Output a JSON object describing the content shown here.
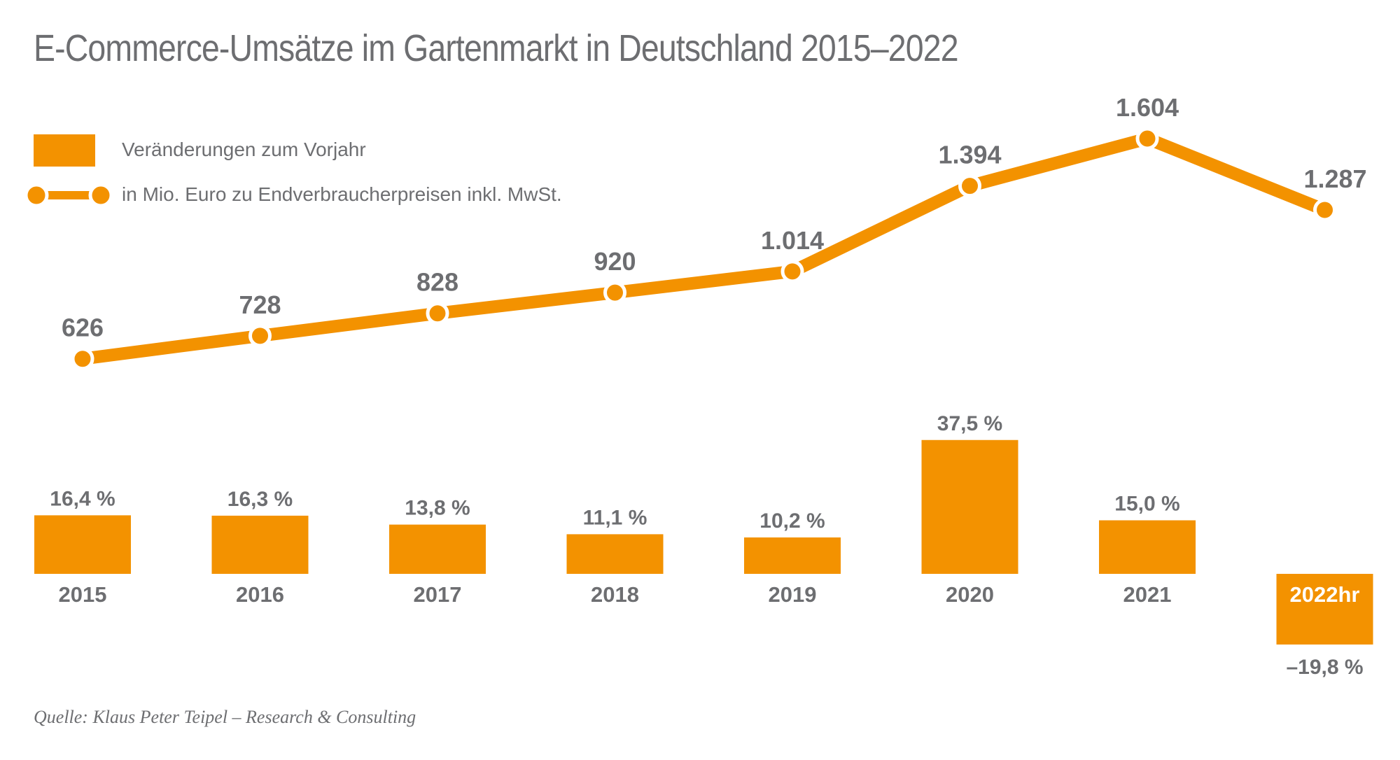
{
  "title": "E-Commerce-Umsätze im Gartenmarkt in Deutschland 2015–2022",
  "legend": {
    "bar_label": "Veränderungen zum Vorjahr",
    "line_label": "in Mio. Euro zu Endverbraucherpreisen inkl. MwSt."
  },
  "source": "Quelle: Klaus Peter Teipel – Research & Consulting",
  "colors": {
    "accent": "#f39200",
    "text": "#6d6e71",
    "label_light": "#ffffff"
  },
  "chart_data": {
    "type": "bar+line",
    "categories": [
      "2015",
      "2016",
      "2017",
      "2018",
      "2019",
      "2020",
      "2021",
      "2022hr"
    ],
    "bar_series": {
      "name": "Veränderungen zum Vorjahr",
      "values": [
        16.4,
        16.3,
        13.8,
        11.1,
        10.2,
        37.5,
        15.0,
        -19.8
      ],
      "labels": [
        "16,4 %",
        "16,3 %",
        "13,8 %",
        "11,1 %",
        "10,2 %",
        "37,5 %",
        "15,0 %",
        "–19,8 %"
      ]
    },
    "line_series": {
      "name": "in Mio. Euro zu Endverbraucherpreisen inkl. MwSt.",
      "values": [
        626,
        728,
        828,
        920,
        1014,
        1394,
        1604,
        1287
      ],
      "labels": [
        "626",
        "728",
        "828",
        "920",
        "1.014",
        "1.394",
        "1.604",
        "1.287"
      ]
    },
    "legend_position": "top-left"
  }
}
